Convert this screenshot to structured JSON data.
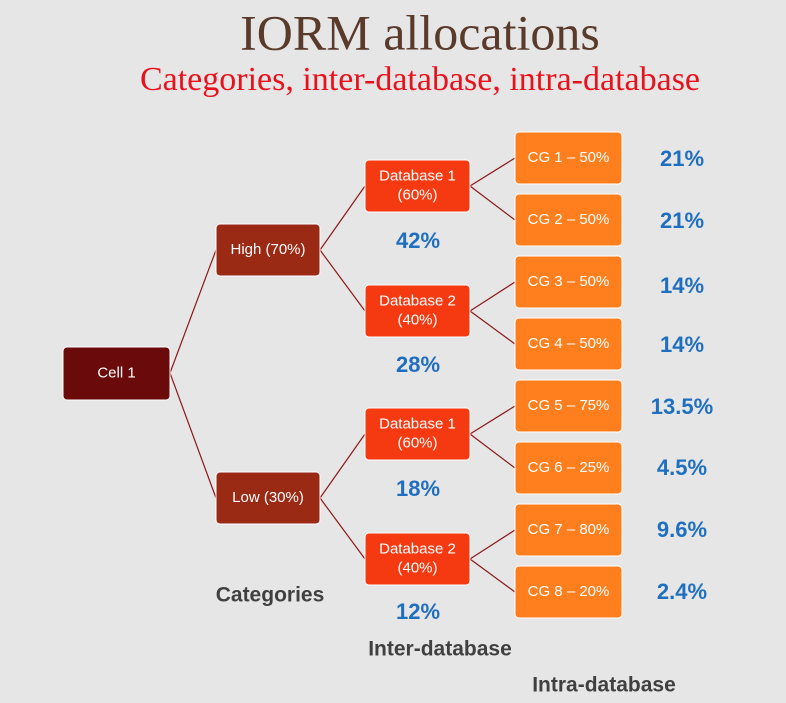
{
  "title": "IORM allocations",
  "subtitle": "Categories, inter-database, intra-database",
  "nodes": [
    {
      "lines": [
        "Cell 1"
      ]
    },
    {
      "lines": [
        "High (70%)"
      ]
    },
    {
      "lines": [
        "Low (30%)"
      ]
    },
    {
      "lines": [
        "Database 1",
        "(60%)"
      ]
    },
    {
      "lines": [
        "Database 2",
        "(40%)"
      ]
    },
    {
      "lines": [
        "Database 1",
        "(60%)"
      ]
    },
    {
      "lines": [
        "Database 2",
        "(40%)"
      ]
    },
    {
      "lines": [
        "CG 1 – 50%"
      ]
    },
    {
      "lines": [
        "CG 2 – 50%"
      ]
    },
    {
      "lines": [
        "CG 3 – 50%"
      ]
    },
    {
      "lines": [
        "CG 4 – 50%"
      ]
    },
    {
      "lines": [
        "CG 5 – 75%"
      ]
    },
    {
      "lines": [
        "CG 6 – 25%"
      ]
    },
    {
      "lines": [
        "CG 7 – 80%"
      ]
    },
    {
      "lines": [
        "CG 8 – 20%"
      ]
    }
  ],
  "database_allocations": [
    "42%",
    "28%",
    "18%",
    "12%"
  ],
  "group_allocations": [
    "21%",
    "21%",
    "14%",
    "14%",
    "13.5%",
    "4.5%",
    "9.6%",
    "2.4%"
  ],
  "column_labels": [
    "Categories",
    "Inter-database",
    "Intra-database"
  ]
}
